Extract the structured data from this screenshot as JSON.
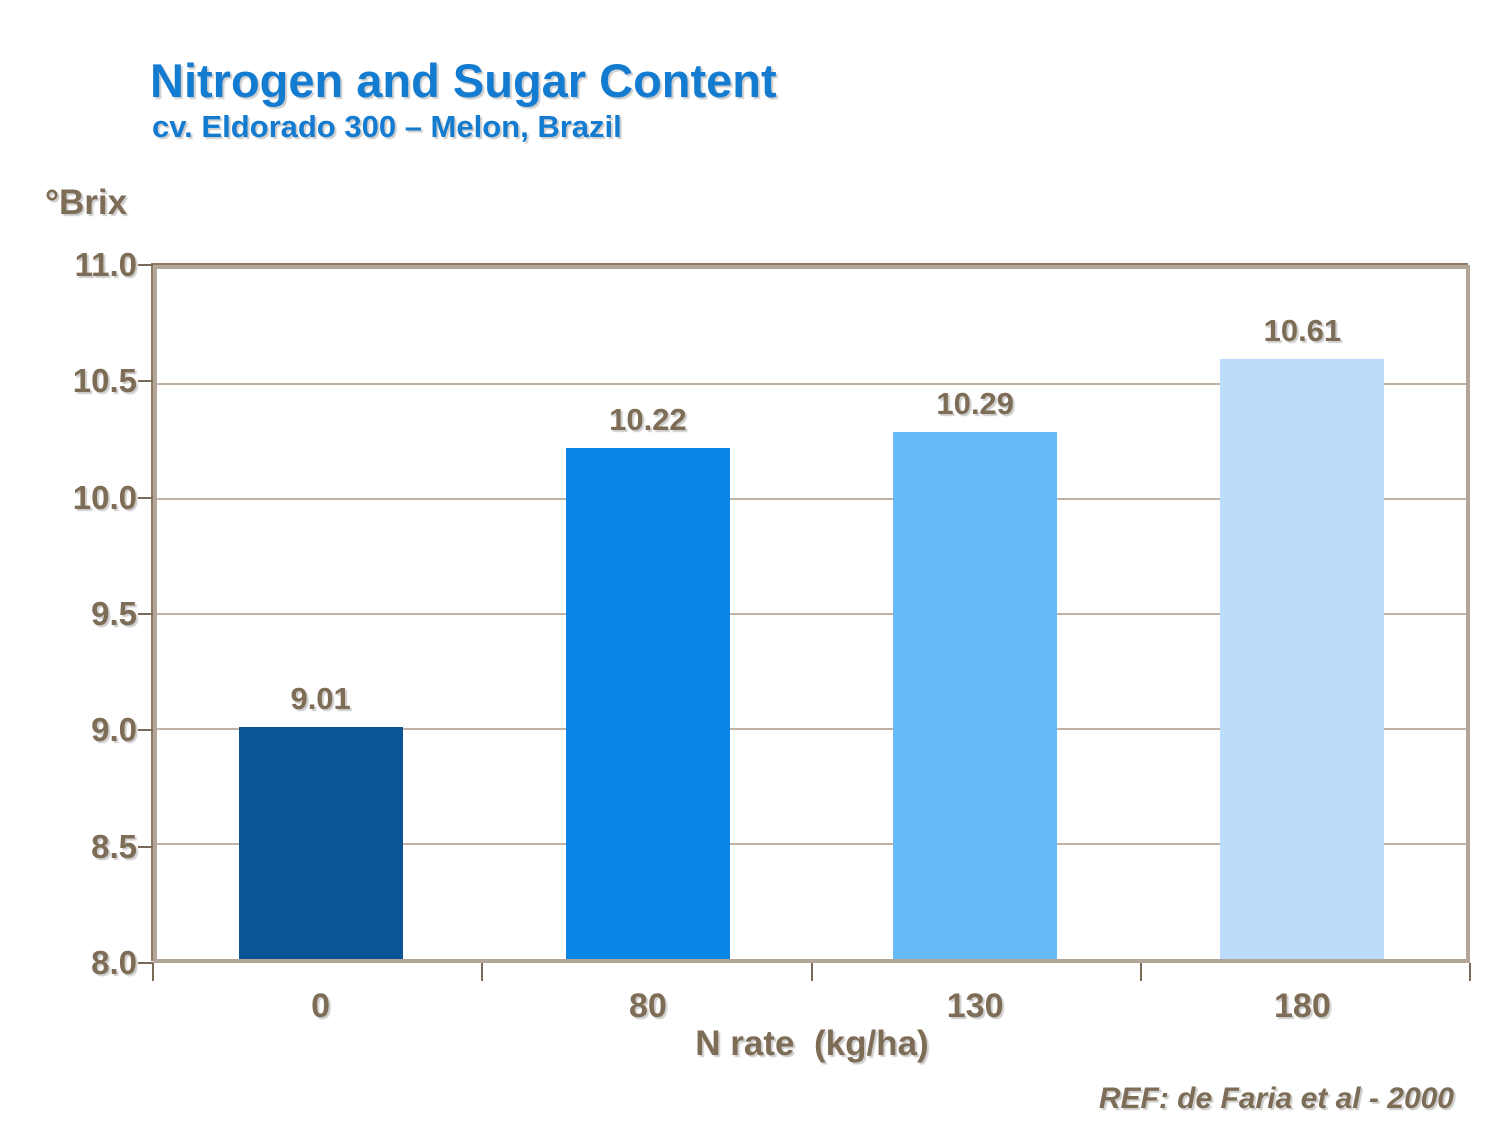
{
  "header": {
    "title": "Nitrogen and Sugar Content",
    "subtitle": "cv. Eldorado 300 – Melon, Brazil"
  },
  "reference": "REF: de Faria et al - 2000",
  "chart_data": {
    "type": "bar",
    "title": "Nitrogen and Sugar Content",
    "subtitle": "cv. Eldorado 300 – Melon, Brazil",
    "y_axis_title": "°Brix",
    "xlabel": "N rate  (kg/ha)",
    "ylabel": "°Brix",
    "categories": [
      "0",
      "80",
      "130",
      "180"
    ],
    "values": [
      9.01,
      10.22,
      10.29,
      10.61
    ],
    "value_labels": [
      "9.01",
      "10.22",
      "10.29",
      "10.61"
    ],
    "bar_colors": [
      "#0B5596",
      "#0885E5",
      "#66BCFA",
      "#BBDDFB"
    ],
    "ylim": [
      8.0,
      11.0
    ],
    "ytick_step": 0.5,
    "yticks": [
      "11.0",
      "10.5",
      "10.0",
      "9.5",
      "9.0",
      "8.5",
      "8.0"
    ],
    "grid": "horizontal",
    "legend": "none",
    "annotation": "REF: de Faria et al - 2000"
  },
  "colors": {
    "title_blue": "#137BD0",
    "label_brown": "#7E6D56",
    "axis_border": "#B3A597",
    "axis_border_dark": "#8B7B66",
    "gridline": "#BFB2A4",
    "tick": "#7A6A58",
    "background": "#FFFFFF"
  }
}
